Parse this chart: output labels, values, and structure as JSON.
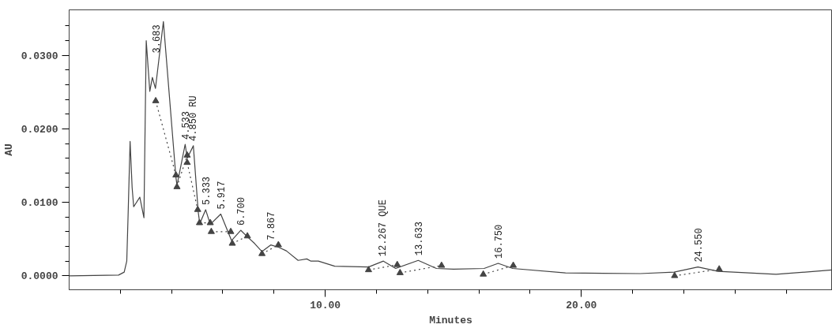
{
  "chart_data": {
    "type": "line",
    "xlabel": "Minutes",
    "ylabel": "AU",
    "xlim": [
      0,
      29.8
    ],
    "ylim": [
      -0.0019,
      0.0362
    ],
    "xticks": [
      {
        "value": 2,
        "label": null
      },
      {
        "value": 4,
        "label": null
      },
      {
        "value": 6,
        "label": null
      },
      {
        "value": 8,
        "label": null
      },
      {
        "value": 10,
        "label": "10.00"
      },
      {
        "value": 12,
        "label": null
      },
      {
        "value": 14,
        "label": null
      },
      {
        "value": 16,
        "label": null
      },
      {
        "value": 18,
        "label": null
      },
      {
        "value": 20,
        "label": "20.00"
      },
      {
        "value": 22,
        "label": null
      },
      {
        "value": 24,
        "label": null
      },
      {
        "value": 26,
        "label": null
      },
      {
        "value": 28,
        "label": null
      }
    ],
    "yticks": [
      {
        "value": 0,
        "label": "0.0000"
      },
      {
        "value": 0.002,
        "label": null
      },
      {
        "value": 0.004,
        "label": null
      },
      {
        "value": 0.006,
        "label": null
      },
      {
        "value": 0.008,
        "label": null
      },
      {
        "value": 0.01,
        "label": "0.0100"
      },
      {
        "value": 0.012,
        "label": null
      },
      {
        "value": 0.014,
        "label": null
      },
      {
        "value": 0.016,
        "label": null
      },
      {
        "value": 0.018,
        "label": null
      },
      {
        "value": 0.02,
        "label": "0.0200"
      },
      {
        "value": 0.022,
        "label": null
      },
      {
        "value": 0.024,
        "label": null
      },
      {
        "value": 0.026,
        "label": null
      },
      {
        "value": 0.028,
        "label": null
      },
      {
        "value": 0.03,
        "label": "0.0300"
      },
      {
        "value": 0.032,
        "label": null
      },
      {
        "value": 0.034,
        "label": null
      }
    ],
    "grid": false,
    "series": [
      {
        "color": "#444444",
        "line_style": "solid",
        "marker": "none",
        "x": [
          0,
          1.93,
          2.15,
          2.25,
          2.3,
          2.38,
          2.46,
          2.52,
          2.76,
          2.92,
          3.01,
          3.15,
          3.25,
          3.37,
          3.68,
          4.17,
          4.21,
          4.53,
          4.61,
          4.85,
          5.04,
          5.1,
          5.33,
          5.51,
          5.92,
          6.34,
          6.7,
          6.96,
          7.24,
          7.53,
          7.87,
          8.17,
          8.48,
          8.94,
          9.28,
          9.44,
          9.73,
          10.37,
          11.69,
          12.27,
          12.75,
          13.63,
          14.34,
          15.01,
          16.2,
          16.75,
          17.32,
          19.38,
          22.29,
          23.62,
          24.55,
          25.34,
          27.6,
          29.8
        ],
        "values": [
          0,
          0.0001,
          0.0005,
          0.002,
          0.008,
          0.0183,
          0.012,
          0.0094,
          0.0107,
          0.0079,
          0.032,
          0.0251,
          0.027,
          0.0255,
          0.0346,
          0.0134,
          0.0123,
          0.0179,
          0.016,
          0.0177,
          0.0087,
          0.0071,
          0.009,
          0.007,
          0.0084,
          0.0048,
          0.0062,
          0.0053,
          0.0044,
          0.0033,
          0.0042,
          0.0039,
          0.0034,
          0.0021,
          0.0023,
          0.002,
          0.002,
          0.0013,
          0.0012,
          0.002,
          0.001,
          0.0021,
          0.001,
          0.0009,
          0.001,
          0.0017,
          0.001,
          0.0004,
          0.0003,
          0.0005,
          0.0012,
          0.0006,
          0.0002,
          0.0008
        ]
      },
      {
        "type": "line",
        "color": "#444444",
        "line_style": "dotted",
        "marker": "triangle",
        "x": [
          3.38,
          4.17,
          null,
          4.21,
          4.61,
          null,
          4.61,
          5.02,
          null,
          5.09,
          5.51,
          null,
          5.55,
          6.31,
          null,
          6.37,
          6.96,
          null,
          7.53,
          8.17,
          null,
          11.69,
          12.81,
          null,
          12.92,
          14.54,
          null,
          16.17,
          17.34,
          null,
          23.64,
          25.38
        ],
        "values": [
          0.0238,
          0.0137,
          null,
          0.0121,
          0.0164,
          null,
          0.0154,
          0.009,
          null,
          0.0072,
          0.0072,
          null,
          0.006,
          0.006,
          null,
          0.0044,
          0.0054,
          null,
          0.003,
          0.0042,
          null,
          0.0008,
          0.0015,
          null,
          0.0004,
          0.0014,
          null,
          0.0002,
          0.0014,
          null,
          0.0,
          0.0009
        ]
      }
    ],
    "annotations": [
      {
        "text": "3.683",
        "x": 3.683,
        "y": 0.0346
      },
      {
        "text": "4.533",
        "x": 4.533,
        "y": 0.0179
      },
      {
        "text": "4.850 RU",
        "x": 4.85,
        "y": 0.0177
      },
      {
        "text": "5.333",
        "x": 5.333,
        "y": 0.009
      },
      {
        "text": "5.917",
        "x": 5.917,
        "y": 0.0084
      },
      {
        "text": "6.700",
        "x": 6.7,
        "y": 0.0062
      },
      {
        "text": "7.867",
        "x": 7.867,
        "y": 0.0042
      },
      {
        "text": "12.267 QUE",
        "x": 12.267,
        "y": 0.002
      },
      {
        "text": "13.633",
        "x": 13.633,
        "y": 0.0021
      },
      {
        "text": "16.750",
        "x": 16.75,
        "y": 0.0017
      },
      {
        "text": "24.550",
        "x": 24.55,
        "y": 0.0012
      }
    ]
  }
}
